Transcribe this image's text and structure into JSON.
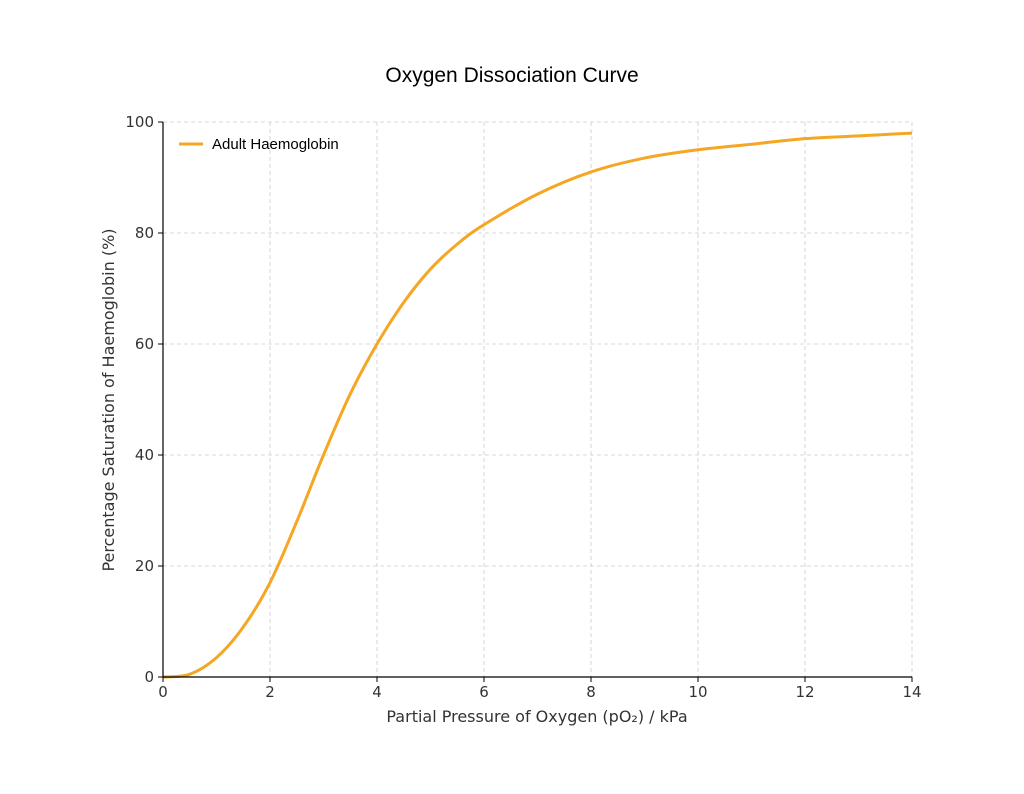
{
  "chart_data": {
    "type": "line",
    "title": "Oxygen Dissociation Curve",
    "xlabel": "Partial Pressure of Oxygen (pO₂) / kPa",
    "ylabel": "Percentage Saturation of Haemoglobin (%)",
    "xlim": [
      0,
      14
    ],
    "ylim": [
      0,
      100
    ],
    "xticks": [
      "0",
      "2",
      "4",
      "6",
      "8",
      "10",
      "12",
      "14"
    ],
    "yticks": [
      "0",
      "20",
      "40",
      "60",
      "80",
      "100"
    ],
    "grid": true,
    "legend_position": "top-left",
    "series": [
      {
        "name": "Adult Haemoglobin",
        "color": "#f5a623",
        "x": [
          0,
          0.5,
          1,
          1.5,
          2,
          2.5,
          3,
          3.5,
          4,
          4.5,
          5,
          5.5,
          6,
          7,
          8,
          9,
          10,
          11,
          12,
          13,
          14
        ],
        "y": [
          0,
          0.5,
          3.5,
          9,
          17,
          28,
          40,
          51,
          60,
          67.5,
          73.5,
          78,
          81.5,
          87,
          91,
          93.5,
          95,
          96,
          97,
          97.5,
          98
        ]
      }
    ]
  }
}
